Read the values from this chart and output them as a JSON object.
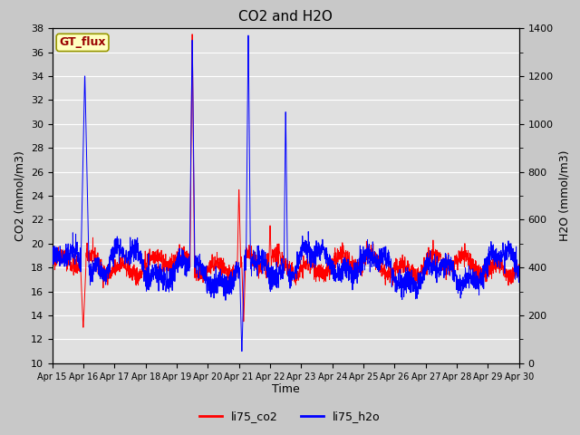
{
  "title": "CO2 and H2O",
  "xlabel": "Time",
  "ylabel_left": "CO2 (mmol/m3)",
  "ylabel_right": "H2O (mmol/m3)",
  "ylim_left": [
    10,
    38
  ],
  "ylim_right": [
    0,
    1400
  ],
  "yticks_left": [
    10,
    12,
    14,
    16,
    18,
    20,
    22,
    24,
    26,
    28,
    30,
    32,
    34,
    36,
    38
  ],
  "yticks_right": [
    0,
    200,
    400,
    600,
    800,
    1000,
    1200,
    1400
  ],
  "xtick_labels": [
    "Apr 15",
    "Apr 16",
    "Apr 17",
    "Apr 18",
    "Apr 19",
    "Apr 20",
    "Apr 21",
    "Apr 22",
    "Apr 23",
    "Apr 24",
    "Apr 25",
    "Apr 26",
    "Apr 27",
    "Apr 28",
    "Apr 29",
    "Apr 30"
  ],
  "fig_bg_color": "#c8c8c8",
  "plot_bg_color": "#e0e0e0",
  "grid_color": "#ffffff",
  "line_co2_color": "red",
  "line_h2o_color": "blue",
  "legend_co2": "li75_co2",
  "legend_h2o": "li75_h2o",
  "label_box_text": "GT_flux",
  "label_box_facecolor": "#ffffc0",
  "label_box_edgecolor": "#999900",
  "label_box_textcolor": "#990000",
  "n_points": 2400,
  "n_days": 15
}
